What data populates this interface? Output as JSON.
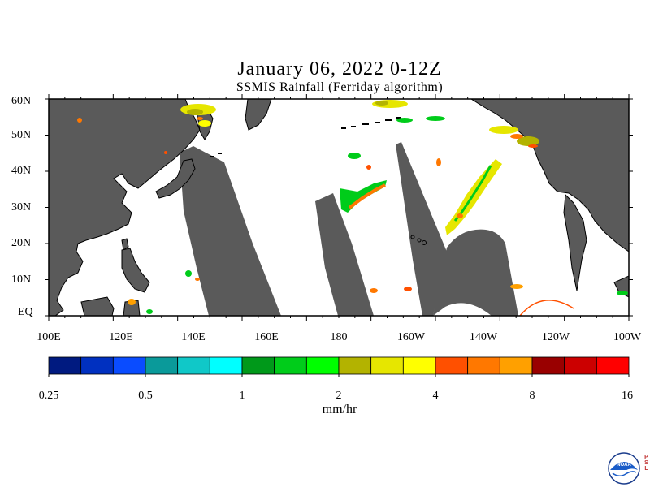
{
  "title": "January 06, 2022 0-12Z",
  "subtitle": "SSMIS Rainfall (Ferriday algorithm)",
  "lat_labels": [
    "60N",
    "50N",
    "40N",
    "30N",
    "20N",
    "10N",
    "EQ"
  ],
  "lon_labels": [
    "100E",
    "120E",
    "140E",
    "160E",
    "180",
    "160W",
    "140W",
    "120W",
    "100W"
  ],
  "colorbar": {
    "unit": "mm/hr",
    "labels": [
      "0.25",
      "0.5",
      "1",
      "2",
      "4",
      "8",
      "16"
    ],
    "colors": [
      "#001a80",
      "#0030c0",
      "#0a4cff",
      "#0a9a9a",
      "#10c8c8",
      "#00ffff",
      "#00991a",
      "#00cc1a",
      "#00ff00",
      "#b3b300",
      "#e6e600",
      "#ffff00",
      "#ff5000",
      "#ff7800",
      "#ffa000",
      "#990000",
      "#cc0000",
      "#ff0000"
    ]
  },
  "map": {
    "land_color": "#5a5a5a",
    "swath_gap_color": "#5a5a5a",
    "ocean_color": "#ffffff"
  },
  "logo": {
    "text": "NOAA",
    "side_text": "PSL"
  }
}
